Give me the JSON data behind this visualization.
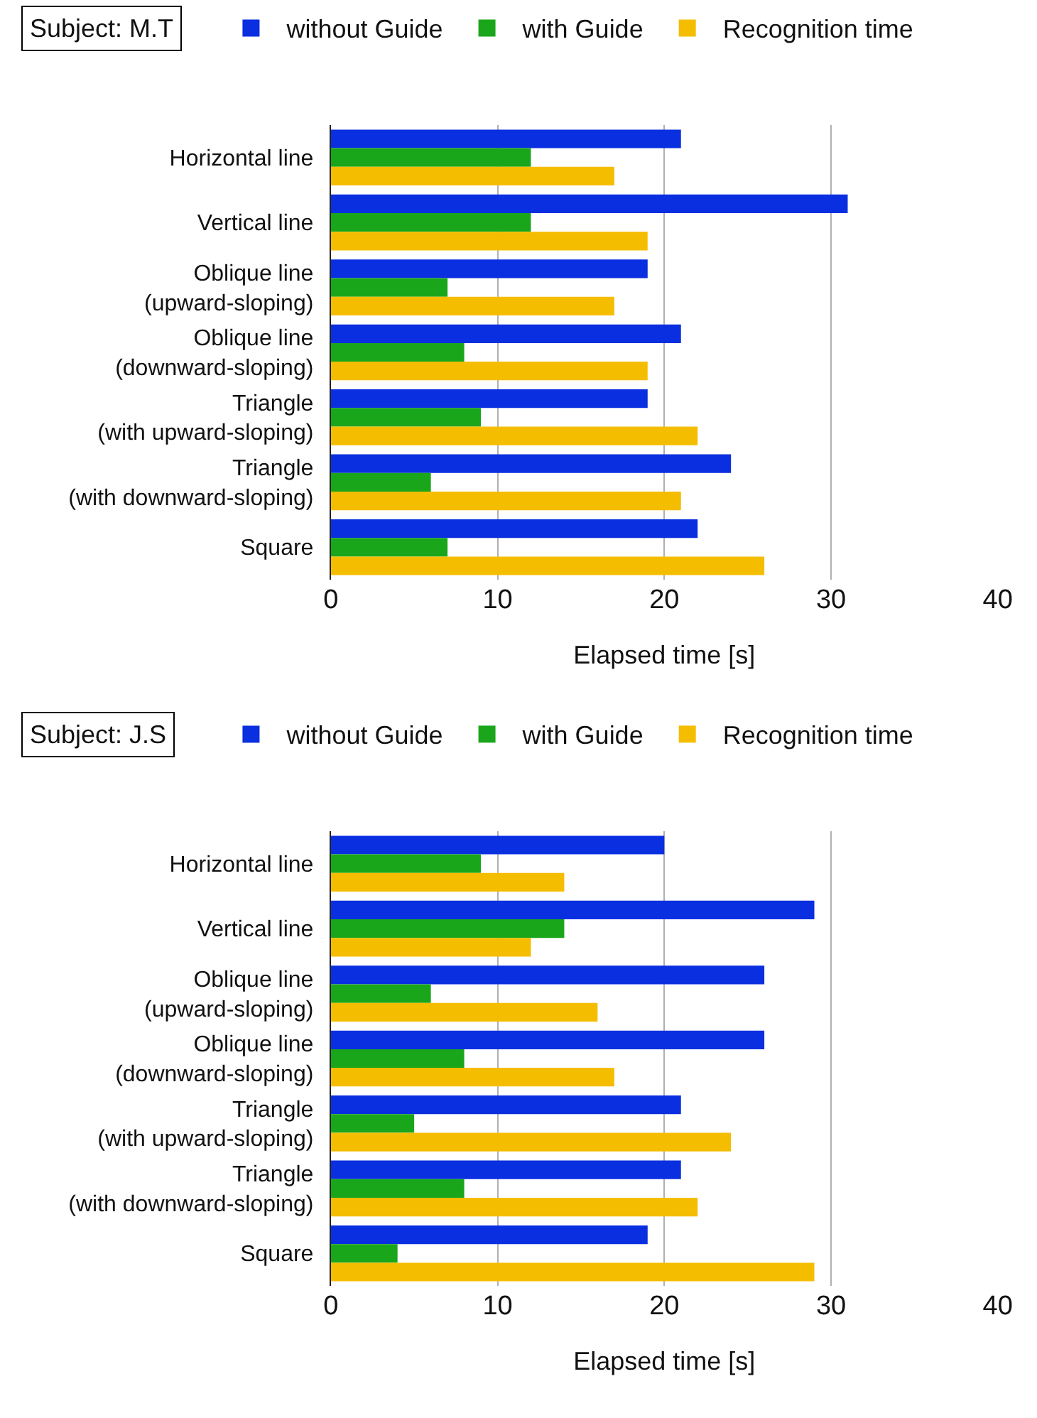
{
  "chart_data": [
    {
      "type": "bar",
      "orientation": "horizontal",
      "title": "Subject: M.T",
      "xlabel": "Elapsed time [s]",
      "categories": [
        "Horizontal line",
        "Vertical line",
        "Oblique line\n(upward-sloping)",
        "Oblique line\n(downward-sloping)",
        "Triangle\n(with upward-sloping)",
        "Triangle\n(with downward-sloping)",
        "Square"
      ],
      "series": [
        {
          "name": "without Guide",
          "color": "#0a2fe0",
          "values": [
            21,
            31,
            19,
            21,
            19,
            24,
            22
          ]
        },
        {
          "name": "with Guide",
          "color": "#1aa61a",
          "values": [
            12,
            12,
            7,
            8,
            9,
            6,
            7
          ]
        },
        {
          "name": "Recognition time",
          "color": "#f5bd00",
          "values": [
            17,
            19,
            17,
            19,
            22,
            21,
            26
          ]
        }
      ],
      "xlim": [
        0,
        40
      ],
      "xticks": [
        0,
        10,
        20,
        30,
        40
      ],
      "grid": "x",
      "legend": "top"
    },
    {
      "type": "bar",
      "orientation": "horizontal",
      "title": "Subject: J.S",
      "xlabel": "Elapsed time [s]",
      "categories": [
        "Horizontal line",
        "Vertical line",
        "Oblique line\n(upward-sloping)",
        "Oblique line\n(downward-sloping)",
        "Triangle\n(with upward-sloping)",
        "Triangle\n(with downward-sloping)",
        "Square"
      ],
      "series": [
        {
          "name": "without Guide",
          "color": "#0a2fe0",
          "values": [
            20,
            29,
            26,
            26,
            21,
            21,
            19
          ]
        },
        {
          "name": "with Guide",
          "color": "#1aa61a",
          "values": [
            9,
            14,
            6,
            8,
            5,
            8,
            4
          ]
        },
        {
          "name": "Recognition time",
          "color": "#f5bd00",
          "values": [
            14,
            12,
            16,
            17,
            24,
            22,
            29
          ]
        }
      ],
      "xlim": [
        0,
        40
      ],
      "xticks": [
        0,
        10,
        20,
        30,
        40
      ],
      "grid": "x",
      "legend": "top"
    }
  ]
}
